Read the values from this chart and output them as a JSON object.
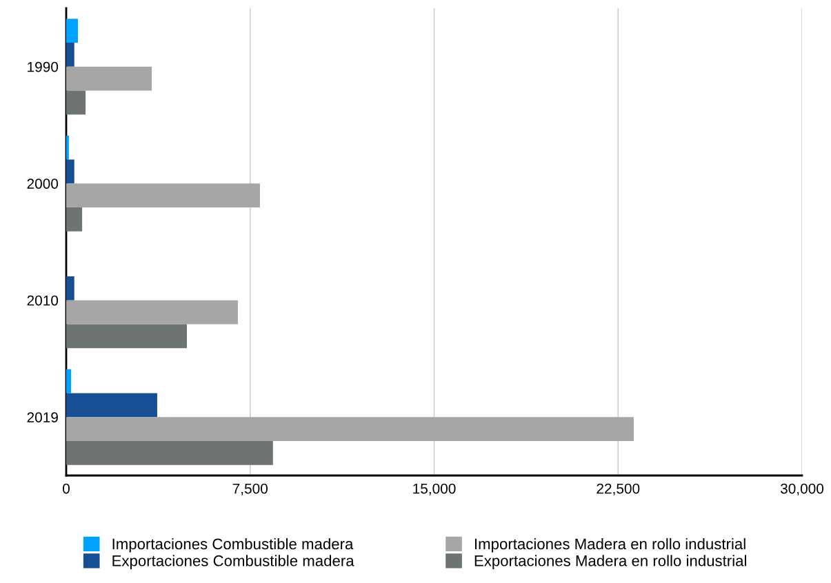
{
  "chart_data": {
    "type": "bar",
    "orientation": "horizontal",
    "categories": [
      "1990",
      "2000",
      "2010",
      "2019"
    ],
    "series": [
      {
        "name": "Importaciones Combustible madera",
        "color": "#00a2ff",
        "values": [
          480,
          110,
          0,
          200
        ]
      },
      {
        "name": "Exportaciones Combustible madera",
        "color": "#164f93",
        "values": [
          330,
          330,
          330,
          3710
        ]
      },
      {
        "name": "Importaciones Madera en rollo industrial",
        "color": "#a6a6a6",
        "values": [
          3490,
          7900,
          7000,
          23140
        ]
      },
      {
        "name": "Exportaciones Madera en rollo industrial",
        "color": "#6d7471",
        "values": [
          790,
          650,
          4920,
          8430
        ]
      }
    ],
    "xlim": [
      0,
      30000
    ],
    "xticks": [
      0,
      {
        "value": 7500,
        "label": "7,500"
      },
      {
        "value": 15000,
        "label": "15,000"
      },
      {
        "value": 22500,
        "label": "22,500"
      },
      {
        "value": 30000,
        "label": "30,000"
      }
    ],
    "grid": "x",
    "legend": "bottom"
  }
}
